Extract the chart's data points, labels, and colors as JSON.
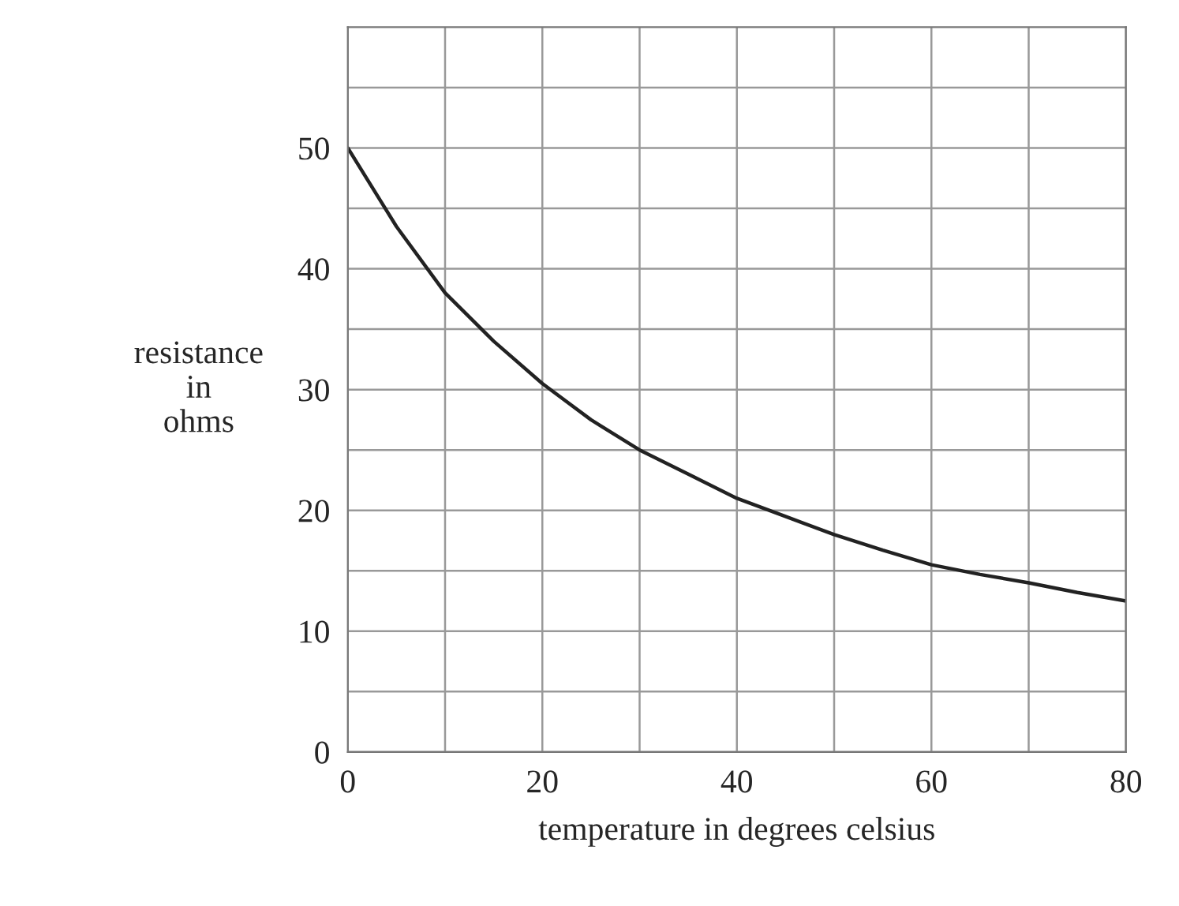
{
  "chart_data": {
    "type": "line",
    "xlabel": "temperature in degrees celsius",
    "ylabel": "resistance\nin\nohms",
    "x": [
      0,
      5,
      10,
      15,
      20,
      25,
      30,
      35,
      40,
      45,
      50,
      55,
      60,
      65,
      70,
      75,
      80
    ],
    "series": [
      {
        "color": "#222222",
        "values": [
          50,
          43.5,
          38,
          34,
          30.5,
          27.5,
          25,
          23,
          21,
          19.5,
          18,
          16.7,
          15.5,
          14.7,
          14,
          13.2,
          12.5
        ]
      }
    ],
    "xlim": [
      0,
      80
    ],
    "ylim": [
      0,
      60
    ],
    "xticks": [
      0,
      {
        "value": 10,
        "label": null
      },
      20,
      {
        "value": 30,
        "label": null
      },
      40,
      {
        "value": 50,
        "label": null
      },
      60,
      {
        "value": 70,
        "label": null
      },
      80
    ],
    "yticks": [
      0,
      {
        "value": 5,
        "label": null
      },
      10,
      {
        "value": 15,
        "label": null
      },
      20,
      {
        "value": 25,
        "label": null
      },
      30,
      {
        "value": 35,
        "label": null
      },
      40,
      {
        "value": 45,
        "label": null
      },
      50,
      {
        "value": 55,
        "label": null
      }
    ],
    "grid": true,
    "marker": "none",
    "line_style": "solid",
    "legend": false
  }
}
